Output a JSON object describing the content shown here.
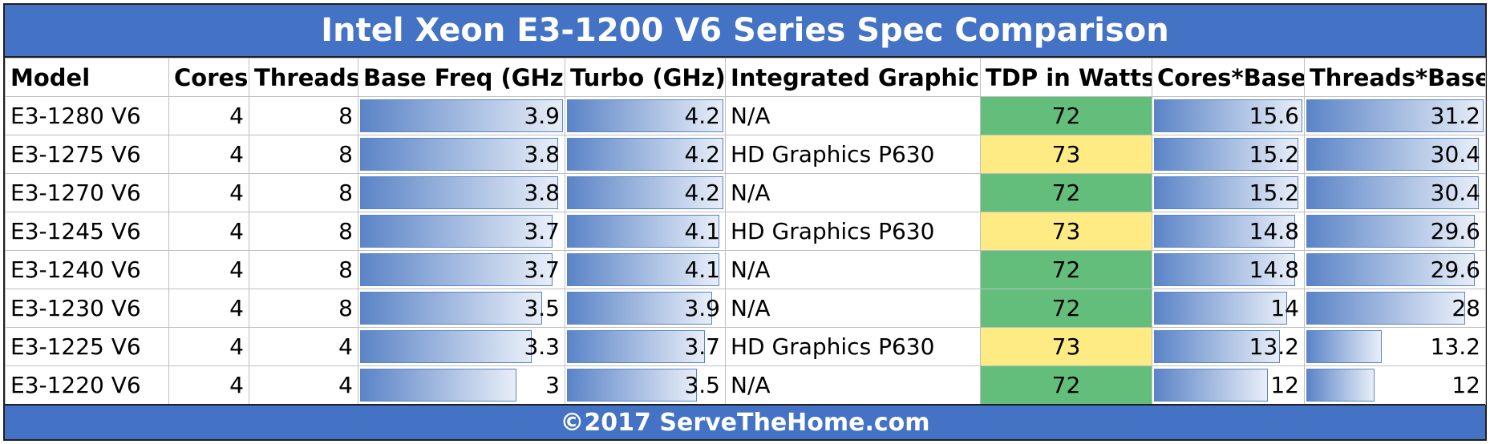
{
  "title": "Intel Xeon E3-1200 V6 Series Spec Comparison",
  "footer": "©2017 ServeTheHome.com",
  "colors": {
    "header_blue": "#4472c4",
    "bar_blue": "#5b84c7",
    "tdp_72": "#63be7b",
    "tdp_73": "#ffeb84"
  },
  "chart_data": {
    "type": "table",
    "title": "Intel Xeon E3-1200 V6 Series Spec Comparison",
    "columns": [
      "Model",
      "Cores",
      "Threads",
      "Base Freq (GHz)",
      "Turbo (GHz)",
      "Integrated Graphics",
      "TDP in Watts",
      "Cores*Base",
      "Threads*Base"
    ],
    "databar_columns": {
      "base": [
        0,
        3.9
      ],
      "turbo": [
        0,
        4.2
      ],
      "cores_base": [
        0,
        15.6
      ],
      "threads_base": [
        0,
        31.2
      ]
    },
    "rows": [
      {
        "model": "E3-1280 V6",
        "cores": 4,
        "threads": 8,
        "base": 3.9,
        "turbo": 4.2,
        "graphics": "N/A",
        "tdp": 72,
        "cores_base": 15.6,
        "threads_base": 31.2
      },
      {
        "model": "E3-1275 V6",
        "cores": 4,
        "threads": 8,
        "base": 3.8,
        "turbo": 4.2,
        "graphics": "HD Graphics P630",
        "tdp": 73,
        "cores_base": 15.2,
        "threads_base": 30.4
      },
      {
        "model": "E3-1270 V6",
        "cores": 4,
        "threads": 8,
        "base": 3.8,
        "turbo": 4.2,
        "graphics": "N/A",
        "tdp": 72,
        "cores_base": 15.2,
        "threads_base": 30.4
      },
      {
        "model": "E3-1245 V6",
        "cores": 4,
        "threads": 8,
        "base": 3.7,
        "turbo": 4.1,
        "graphics": "HD Graphics P630",
        "tdp": 73,
        "cores_base": 14.8,
        "threads_base": 29.6
      },
      {
        "model": "E3-1240 V6",
        "cores": 4,
        "threads": 8,
        "base": 3.7,
        "turbo": 4.1,
        "graphics": "N/A",
        "tdp": 72,
        "cores_base": 14.8,
        "threads_base": 29.6
      },
      {
        "model": "E3-1230 V6",
        "cores": 4,
        "threads": 8,
        "base": 3.5,
        "turbo": 3.9,
        "graphics": "N/A",
        "tdp": 72,
        "cores_base": 14,
        "threads_base": 28
      },
      {
        "model": "E3-1225 V6",
        "cores": 4,
        "threads": 4,
        "base": 3.3,
        "turbo": 3.7,
        "graphics": "HD Graphics P630",
        "tdp": 73,
        "cores_base": 13.2,
        "threads_base": 13.2
      },
      {
        "model": "E3-1220 V6",
        "cores": 4,
        "threads": 4,
        "base": 3,
        "turbo": 3.5,
        "graphics": "N/A",
        "tdp": 72,
        "cores_base": 12,
        "threads_base": 12
      }
    ]
  }
}
